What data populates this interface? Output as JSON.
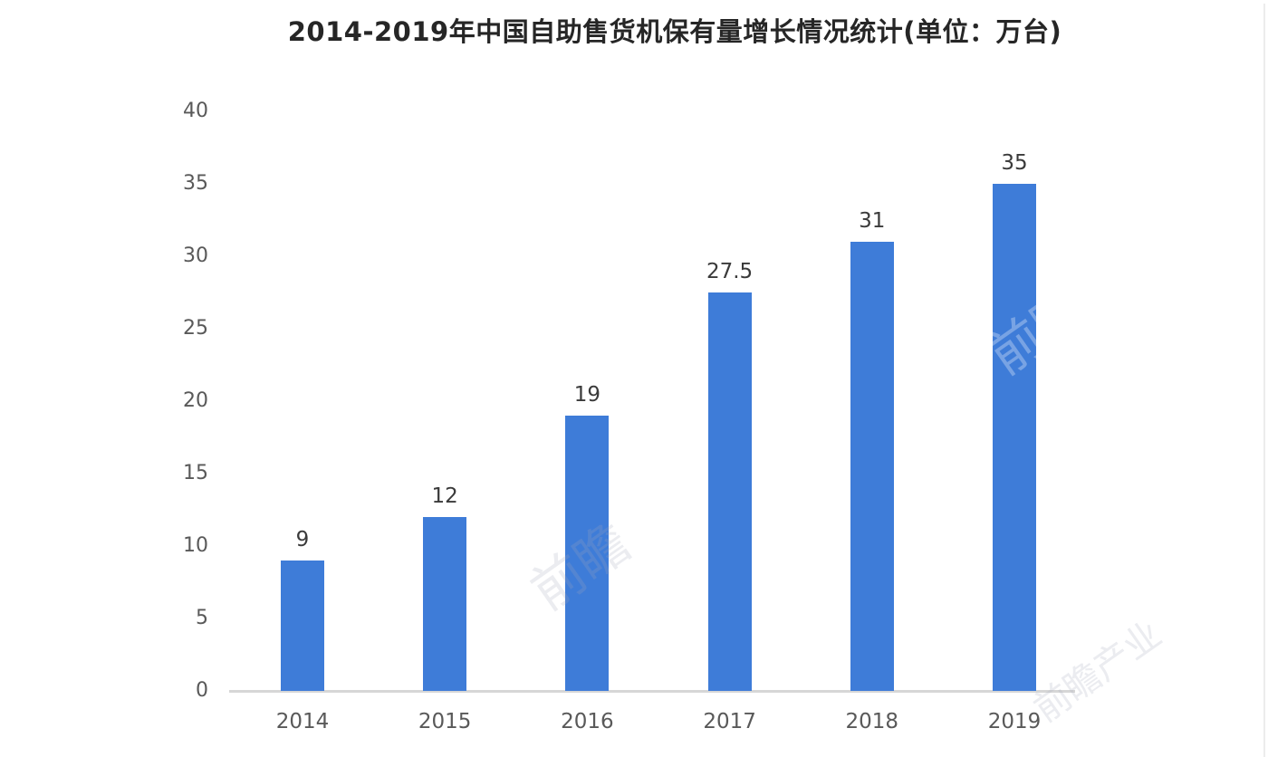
{
  "chart_data": {
    "type": "bar",
    "title": "2014-2019年中国自助售货机保有量增长情况统计(单位：万台)",
    "categories": [
      "2014",
      "2015",
      "2016",
      "2017",
      "2018",
      "2019"
    ],
    "values": [
      9,
      12,
      19,
      27.5,
      31,
      35
    ],
    "value_labels": [
      "9",
      "12",
      "19",
      "27.5",
      "31",
      "35"
    ],
    "xlabel": "",
    "ylabel": "",
    "ylim": [
      0,
      40
    ],
    "yticks": [
      0,
      5,
      10,
      15,
      20,
      25,
      30,
      35,
      40
    ],
    "grid": false,
    "legend": "none",
    "bar_color": "#3e7cd8",
    "axis_line_color": "#d6d6d6",
    "title_color": "#262626",
    "tick_label_color": "#595959",
    "value_label_color": "#3a3a3a"
  },
  "watermark": {
    "text": "前瞻",
    "text_small": "前瞻产业"
  }
}
